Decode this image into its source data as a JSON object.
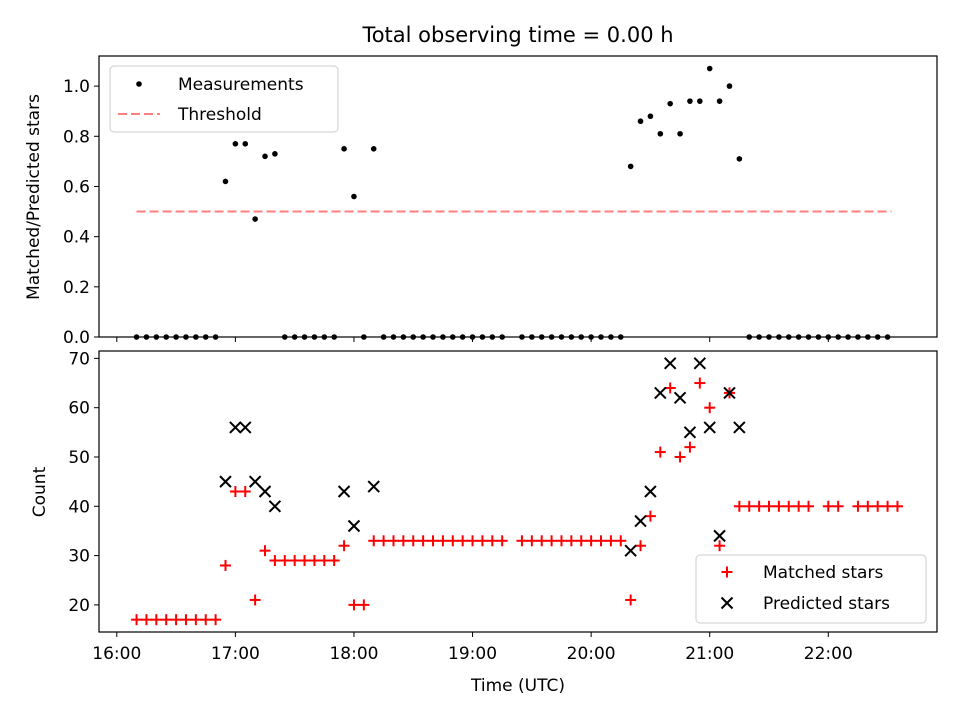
{
  "title": "Total observing time = 0.00 h",
  "colors": {
    "measurements": "#000000",
    "threshold": "#ff7f7f",
    "matched": "#ff0000",
    "predicted": "#000000"
  },
  "chart_data": [
    {
      "type": "scatter",
      "ylabel": "Matched/Predicted stars",
      "xlim": [
        "15:51",
        "22:55"
      ],
      "ylim": [
        0,
        1.12
      ],
      "yticks": [
        "0.0",
        "0.2",
        "0.4",
        "0.6",
        "0.8",
        "1.0"
      ],
      "legend_position": "top-left",
      "legend": [
        "Measurements",
        "Threshold"
      ],
      "threshold": {
        "name": "Threshold",
        "value": 0.5,
        "x_range": [
          "16:10",
          "22:32"
        ]
      },
      "series": [
        {
          "name": "Measurements",
          "points": [
            [
              "16:10",
              0
            ],
            [
              "16:15",
              0
            ],
            [
              "16:20",
              0
            ],
            [
              "16:25",
              0
            ],
            [
              "16:30",
              0
            ],
            [
              "16:35",
              0
            ],
            [
              "16:40",
              0
            ],
            [
              "16:45",
              0
            ],
            [
              "16:50",
              0
            ],
            [
              "16:55",
              0.62
            ],
            [
              "17:00",
              0.77
            ],
            [
              "17:05",
              0.77
            ],
            [
              "17:10",
              0.47
            ],
            [
              "17:15",
              0.72
            ],
            [
              "17:20",
              0.73
            ],
            [
              "17:25",
              0
            ],
            [
              "17:30",
              0
            ],
            [
              "17:35",
              0
            ],
            [
              "17:40",
              0
            ],
            [
              "17:45",
              0
            ],
            [
              "17:50",
              0
            ],
            [
              "17:55",
              0.75
            ],
            [
              "18:00",
              0.56
            ],
            [
              "18:05",
              0
            ],
            [
              "18:10",
              0.75
            ],
            [
              "18:15",
              0
            ],
            [
              "18:20",
              0
            ],
            [
              "18:25",
              0
            ],
            [
              "18:30",
              0
            ],
            [
              "18:35",
              0
            ],
            [
              "18:40",
              0
            ],
            [
              "18:45",
              0
            ],
            [
              "18:50",
              0
            ],
            [
              "18:55",
              0
            ],
            [
              "19:00",
              0
            ],
            [
              "19:05",
              0
            ],
            [
              "19:10",
              0
            ],
            [
              "19:15",
              0
            ],
            [
              "19:25",
              0
            ],
            [
              "19:30",
              0
            ],
            [
              "19:35",
              0
            ],
            [
              "19:40",
              0
            ],
            [
              "19:45",
              0
            ],
            [
              "19:50",
              0
            ],
            [
              "19:55",
              0
            ],
            [
              "20:00",
              0
            ],
            [
              "20:05",
              0
            ],
            [
              "20:10",
              0
            ],
            [
              "20:15",
              0
            ],
            [
              "20:20",
              0.68
            ],
            [
              "20:25",
              0.86
            ],
            [
              "20:30",
              0.88
            ],
            [
              "20:35",
              0.81
            ],
            [
              "20:40",
              0.93
            ],
            [
              "20:45",
              0.81
            ],
            [
              "20:50",
              0.94
            ],
            [
              "20:55",
              0.94
            ],
            [
              "21:00",
              1.07
            ],
            [
              "21:05",
              0.94
            ],
            [
              "21:10",
              1.0
            ],
            [
              "21:15",
              0.71
            ],
            [
              "21:20",
              0
            ],
            [
              "21:25",
              0
            ],
            [
              "21:30",
              0
            ],
            [
              "21:35",
              0
            ],
            [
              "21:40",
              0
            ],
            [
              "21:45",
              0
            ],
            [
              "21:50",
              0
            ],
            [
              "21:55",
              0
            ],
            [
              "22:00",
              0
            ],
            [
              "22:05",
              0
            ],
            [
              "22:10",
              0
            ],
            [
              "22:15",
              0
            ],
            [
              "22:20",
              0
            ],
            [
              "22:25",
              0
            ],
            [
              "22:30",
              0
            ]
          ]
        }
      ]
    },
    {
      "type": "scatter",
      "xlabel": "Time (UTC)",
      "ylabel": "Count",
      "xlim": [
        "15:51",
        "22:55"
      ],
      "ylim": [
        14.5,
        71.5
      ],
      "xticks": [
        "16:00",
        "17:00",
        "18:00",
        "19:00",
        "20:00",
        "21:00",
        "22:00"
      ],
      "yticks": [
        "20",
        "30",
        "40",
        "50",
        "60",
        "70"
      ],
      "legend_position": "lower-right",
      "legend": [
        "Matched stars",
        "Predicted stars"
      ],
      "series": [
        {
          "name": "Matched stars",
          "points": [
            [
              "16:10",
              17
            ],
            [
              "16:15",
              17
            ],
            [
              "16:20",
              17
            ],
            [
              "16:25",
              17
            ],
            [
              "16:30",
              17
            ],
            [
              "16:35",
              17
            ],
            [
              "16:40",
              17
            ],
            [
              "16:45",
              17
            ],
            [
              "16:50",
              17
            ],
            [
              "16:55",
              28
            ],
            [
              "17:00",
              43
            ],
            [
              "17:05",
              43
            ],
            [
              "17:10",
              21
            ],
            [
              "17:15",
              31
            ],
            [
              "17:20",
              29
            ],
            [
              "17:25",
              29
            ],
            [
              "17:30",
              29
            ],
            [
              "17:35",
              29
            ],
            [
              "17:40",
              29
            ],
            [
              "17:45",
              29
            ],
            [
              "17:50",
              29
            ],
            [
              "17:55",
              32
            ],
            [
              "18:00",
              20
            ],
            [
              "18:05",
              20
            ],
            [
              "18:10",
              33
            ],
            [
              "18:15",
              33
            ],
            [
              "18:20",
              33
            ],
            [
              "18:25",
              33
            ],
            [
              "18:30",
              33
            ],
            [
              "18:35",
              33
            ],
            [
              "18:40",
              33
            ],
            [
              "18:45",
              33
            ],
            [
              "18:50",
              33
            ],
            [
              "18:55",
              33
            ],
            [
              "19:00",
              33
            ],
            [
              "19:05",
              33
            ],
            [
              "19:10",
              33
            ],
            [
              "19:15",
              33
            ],
            [
              "19:25",
              33
            ],
            [
              "19:30",
              33
            ],
            [
              "19:35",
              33
            ],
            [
              "19:40",
              33
            ],
            [
              "19:45",
              33
            ],
            [
              "19:50",
              33
            ],
            [
              "19:55",
              33
            ],
            [
              "20:00",
              33
            ],
            [
              "20:05",
              33
            ],
            [
              "20:10",
              33
            ],
            [
              "20:15",
              33
            ],
            [
              "20:20",
              21
            ],
            [
              "20:25",
              32
            ],
            [
              "20:30",
              38
            ],
            [
              "20:35",
              51
            ],
            [
              "20:40",
              64
            ],
            [
              "20:45",
              50
            ],
            [
              "20:50",
              52
            ],
            [
              "20:55",
              65
            ],
            [
              "21:00",
              60
            ],
            [
              "21:05",
              32
            ],
            [
              "21:10",
              63
            ],
            [
              "21:15",
              40
            ],
            [
              "21:20",
              40
            ],
            [
              "21:25",
              40
            ],
            [
              "21:30",
              40
            ],
            [
              "21:35",
              40
            ],
            [
              "21:40",
              40
            ],
            [
              "21:45",
              40
            ],
            [
              "21:50",
              40
            ],
            [
              "22:00",
              40
            ],
            [
              "22:05",
              40
            ],
            [
              "22:15",
              40
            ],
            [
              "22:20",
              40
            ],
            [
              "22:25",
              40
            ],
            [
              "22:30",
              40
            ],
            [
              "22:35",
              40
            ]
          ]
        },
        {
          "name": "Predicted stars",
          "points": [
            [
              "16:55",
              45
            ],
            [
              "17:00",
              56
            ],
            [
              "17:05",
              56
            ],
            [
              "17:10",
              45
            ],
            [
              "17:15",
              43
            ],
            [
              "17:20",
              40
            ],
            [
              "17:55",
              43
            ],
            [
              "18:00",
              36
            ],
            [
              "18:10",
              44
            ],
            [
              "20:20",
              31
            ],
            [
              "20:25",
              37
            ],
            [
              "20:30",
              43
            ],
            [
              "20:35",
              63
            ],
            [
              "20:40",
              69
            ],
            [
              "20:45",
              62
            ],
            [
              "20:50",
              55
            ],
            [
              "20:55",
              69
            ],
            [
              "21:00",
              56
            ],
            [
              "21:05",
              34
            ],
            [
              "21:10",
              63
            ],
            [
              "21:15",
              56
            ]
          ]
        }
      ]
    }
  ]
}
